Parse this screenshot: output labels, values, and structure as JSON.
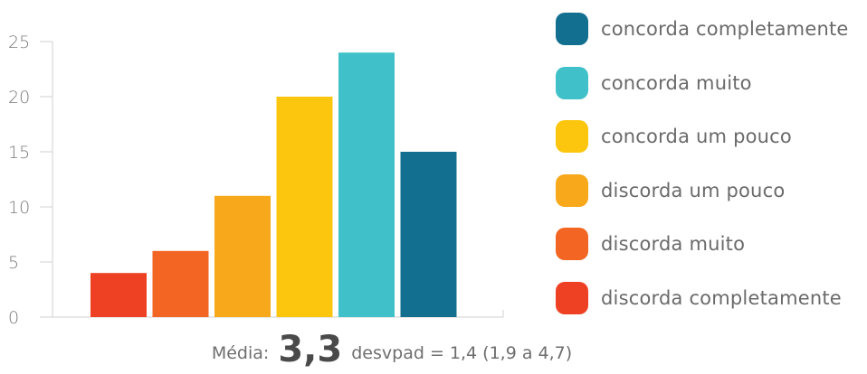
{
  "chart_data": {
    "type": "bar",
    "categories": [
      "discorda completamente",
      "discorda muito",
      "discorda um pouco",
      "concorda um pouco",
      "concorda muito",
      "concorda completamente"
    ],
    "values": [
      4,
      6,
      11,
      20,
      24,
      15
    ],
    "colors": [
      "#ee4123",
      "#f26522",
      "#f7a81b",
      "#fcc60e",
      "#40c1c9",
      "#136f8f"
    ],
    "ylim": [
      0,
      25
    ],
    "yticks": [
      0,
      5,
      10,
      15,
      20,
      25
    ],
    "grid": false,
    "legend_position": "right",
    "legend": [
      {
        "label": "concorda completamente",
        "color": "#136f8f"
      },
      {
        "label": "concorda muito",
        "color": "#40c1c9"
      },
      {
        "label": "concorda um pouco",
        "color": "#fcc60e"
      },
      {
        "label": "discorda um pouco",
        "color": "#f7a81b"
      },
      {
        "label": "discorda muito",
        "color": "#f26522"
      },
      {
        "label": "discorda completamente",
        "color": "#ee4123"
      }
    ]
  },
  "summary": {
    "mean_label": "Média:",
    "mean_value": "3,3",
    "stats_text": "desvpad = 1,4 (1,9 a 4,7)"
  }
}
